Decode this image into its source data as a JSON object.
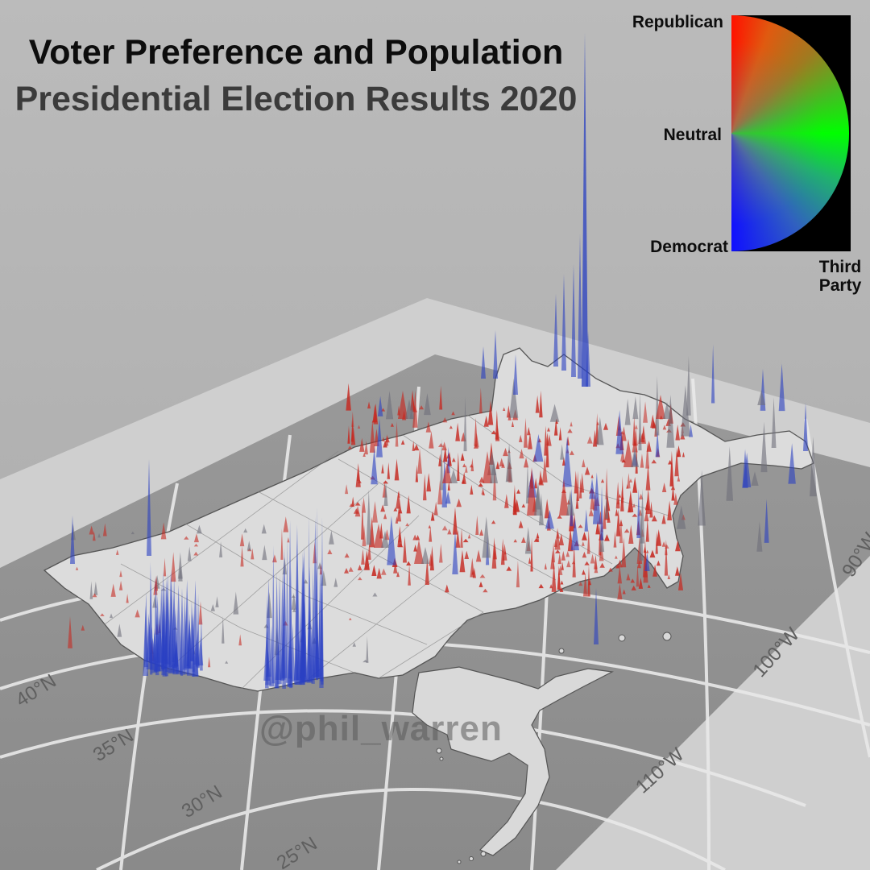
{
  "title": {
    "main": "Voter Preference and Population",
    "sub": "Presidential Election Results 2020"
  },
  "legend": {
    "republican": "Republican",
    "neutral": "Neutral",
    "democrat": "Democrat",
    "third_party_line1": "Third",
    "third_party_line2": "Party",
    "colors": {
      "republican": "#ff1200",
      "neutral": "#00ff00",
      "democrat": "#1010ff",
      "third_party": "#000000"
    }
  },
  "graticule": {
    "latitudes": [
      "40°N",
      "35°N",
      "30°N",
      "25°N"
    ],
    "longitudes": [
      "90°W",
      "100°W",
      "110°W"
    ]
  },
  "watermark": "@phil_warren",
  "colors": {
    "land": "#d9d9d9",
    "ocean": "#8f8f8f",
    "frame": "#cdcdcd",
    "grid_line": "#e6e6e6",
    "spike_red": "#c62a22",
    "spike_blue": "#2940c2",
    "spike_gray": "#6e6e7a"
  }
}
